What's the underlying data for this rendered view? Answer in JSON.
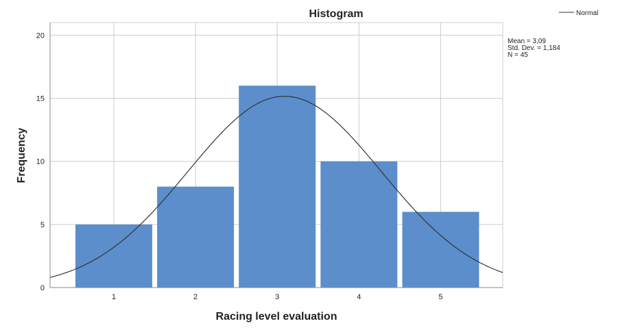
{
  "chart_data": {
    "type": "bar",
    "title": "Histogram",
    "xlabel": "Racing level evaluation",
    "ylabel": "Frequency",
    "categories": [
      1,
      2,
      3,
      4,
      5
    ],
    "values": [
      5,
      8,
      16,
      10,
      6
    ],
    "xlim": [
      0.22,
      5.76
    ],
    "ylim": [
      0,
      21
    ],
    "yticks": [
      0,
      5,
      10,
      15,
      20
    ],
    "xticks": [
      1,
      2,
      3,
      4,
      5
    ],
    "grid": true,
    "bar_color": "#5b8ecb",
    "legend": {
      "position": "top-right",
      "entries": [
        "Normal"
      ]
    },
    "stats": {
      "mean_label": "Mean = 3,09",
      "sd_label": "Std. Dev. = 1,184",
      "n_label": "N = 45"
    },
    "normal_curve": {
      "mean": 3.09,
      "sd": 1.184,
      "n": 45,
      "bin_width": 1
    }
  }
}
